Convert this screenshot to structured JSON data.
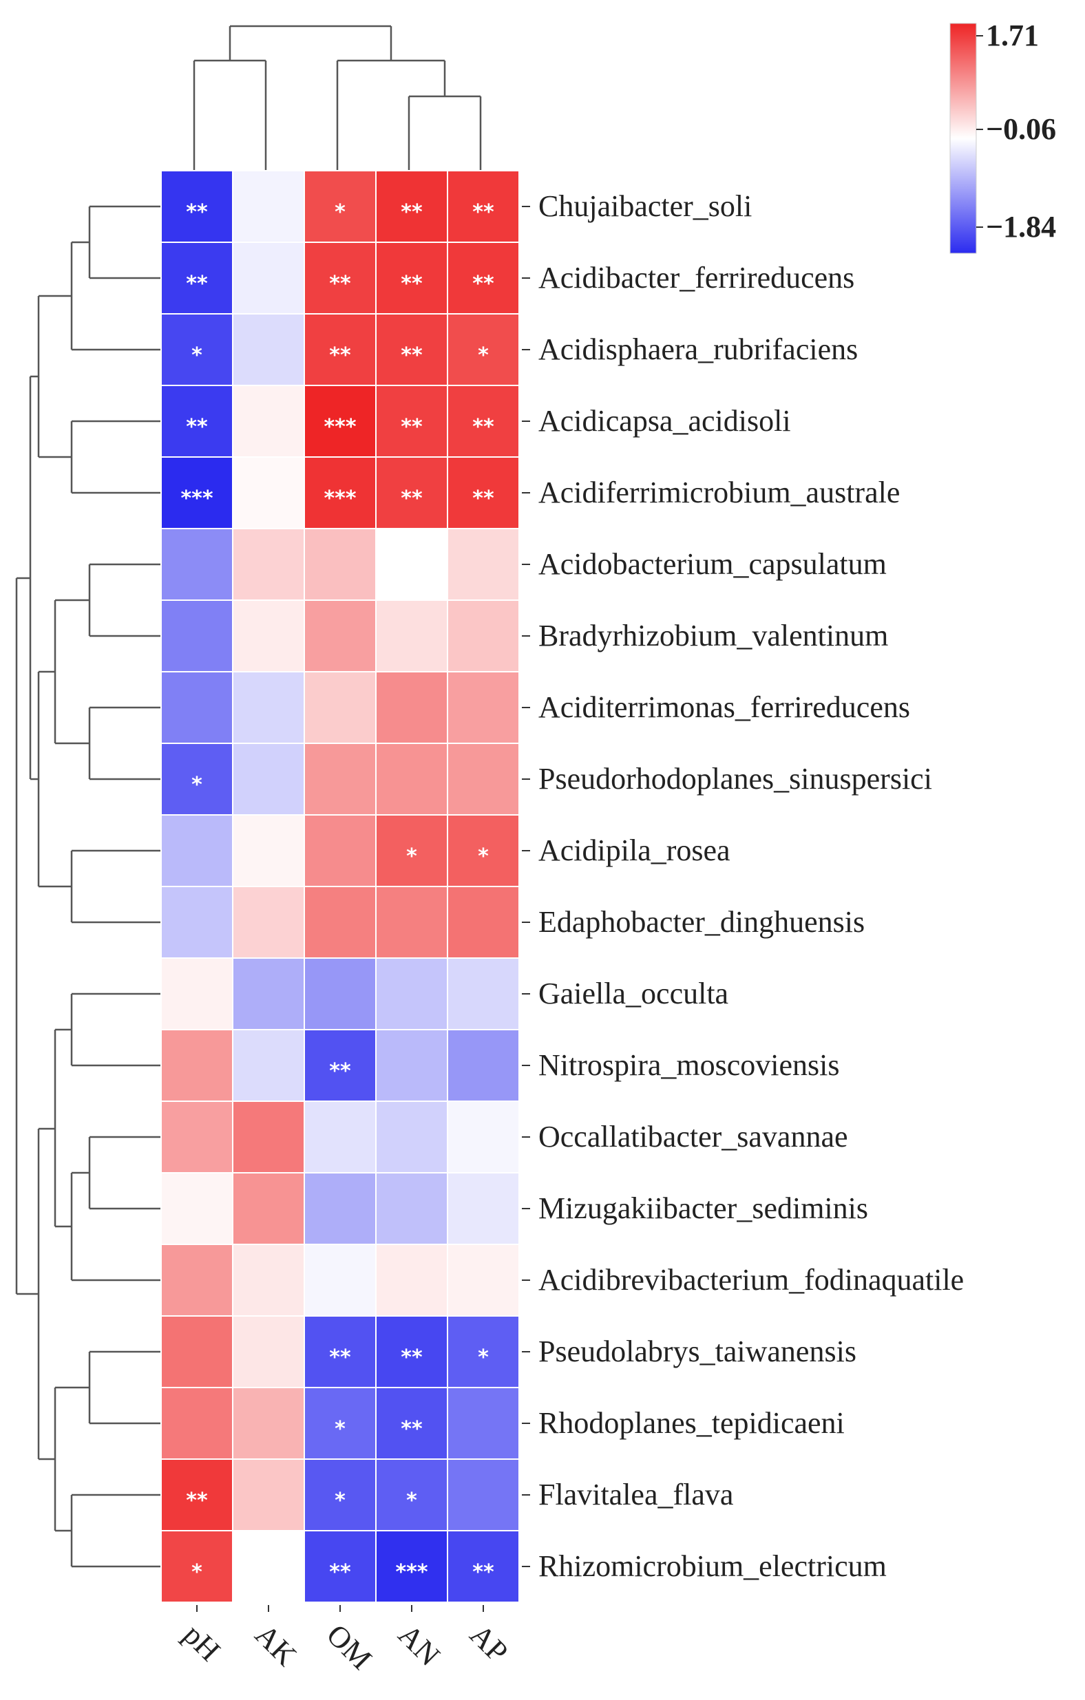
{
  "colors": {
    "high": "#ee2526",
    "mid": "#ffffff",
    "low": "#2b2bef"
  },
  "chart_data": {
    "type": "heatmap",
    "title": "",
    "columns": [
      "pH",
      "AK",
      "OM",
      "AN",
      "AP"
    ],
    "rows": [
      "Chujaibacter_soli",
      "Acidibacter_ferrireducens",
      "Acidisphaera_rubrifaciens",
      "Acidicapsa_acidisoli",
      "Acidiferrimicrobium_australe",
      "Acidobacterium_capsulatum",
      "Bradyrhizobium_valentinum",
      "Aciditerrimonas_ferrireducens",
      "Pseudorhodoplanes_sinuspersici",
      "Acidipila_rosea",
      "Edaphobacter_dinghuensis",
      "Gaiella_occulta",
      "Nitrospira_moscoviensis",
      "Occallatibacter_savannae",
      "Mizugakiibacter_sediminis",
      "Acidibrevibacterium_fodinaquatile",
      "Pseudolabrys_taiwanensis",
      "Rhodoplanes_tepidicaeni",
      "Flavitalea_flava",
      "Rhizomicrobium_electricum"
    ],
    "values": [
      [
        -1.75,
        -0.1,
        1.4,
        1.6,
        1.55
      ],
      [
        -1.7,
        -0.15,
        1.5,
        1.55,
        1.55
      ],
      [
        -1.6,
        -0.3,
        1.5,
        1.5,
        1.4
      ],
      [
        -1.7,
        0.1,
        1.71,
        1.5,
        1.5
      ],
      [
        -1.84,
        0.05,
        1.6,
        1.5,
        1.55
      ],
      [
        -1.0,
        0.35,
        0.5,
        0.0,
        0.3
      ],
      [
        -1.1,
        0.15,
        0.75,
        0.25,
        0.45
      ],
      [
        -1.1,
        -0.35,
        0.4,
        0.9,
        0.75
      ],
      [
        -1.4,
        -0.4,
        0.8,
        0.85,
        0.8
      ],
      [
        -0.6,
        0.08,
        0.9,
        1.25,
        1.25
      ],
      [
        -0.5,
        0.35,
        1.0,
        1.0,
        1.1
      ],
      [
        0.1,
        -0.7,
        -0.9,
        -0.5,
        -0.35
      ],
      [
        0.8,
        -0.3,
        -1.5,
        -0.6,
        -0.9
      ],
      [
        0.75,
        1.05,
        -0.25,
        -0.4,
        -0.08
      ],
      [
        0.08,
        0.85,
        -0.7,
        -0.55,
        -0.2
      ],
      [
        0.8,
        0.18,
        -0.08,
        0.15,
        0.1
      ],
      [
        1.1,
        0.2,
        -1.5,
        -1.6,
        -1.4
      ],
      [
        1.05,
        0.6,
        -1.3,
        -1.5,
        -1.2
      ],
      [
        1.55,
        0.45,
        -1.45,
        -1.4,
        -1.2
      ],
      [
        1.45,
        0.0,
        -1.6,
        -1.8,
        -1.6
      ]
    ],
    "significance": [
      [
        "**",
        "",
        "*",
        "**",
        "**"
      ],
      [
        "**",
        "",
        "**",
        "**",
        "**"
      ],
      [
        "*",
        "",
        "**",
        "**",
        "*"
      ],
      [
        "**",
        "",
        "***",
        "**",
        "**"
      ],
      [
        "***",
        "",
        "***",
        "**",
        "**"
      ],
      [
        "",
        "",
        "",
        "",
        ""
      ],
      [
        "",
        "",
        "",
        "",
        ""
      ],
      [
        "",
        "",
        "",
        "",
        ""
      ],
      [
        "*",
        "",
        "",
        "",
        ""
      ],
      [
        "",
        "",
        "",
        "*",
        "*"
      ],
      [
        "",
        "",
        "",
        "",
        ""
      ],
      [
        "",
        "",
        "",
        "",
        ""
      ],
      [
        "",
        "",
        "**",
        "",
        ""
      ],
      [
        "",
        "",
        "",
        "",
        ""
      ],
      [
        "",
        "",
        "",
        "",
        ""
      ],
      [
        "",
        "",
        "",
        "",
        ""
      ],
      [
        "",
        "",
        "**",
        "**",
        "*"
      ],
      [
        "",
        "",
        "*",
        "**",
        ""
      ],
      [
        "**",
        "",
        "*",
        "*",
        ""
      ],
      [
        "*",
        "",
        "**",
        "***",
        "**"
      ]
    ],
    "color_range": [
      -1.84,
      1.71
    ],
    "legend": {
      "ticks": [
        "1.71",
        "−0.06",
        "−1.84"
      ],
      "tick_values": [
        1.71,
        -0.06,
        -1.84
      ],
      "placement": "top-right"
    }
  }
}
